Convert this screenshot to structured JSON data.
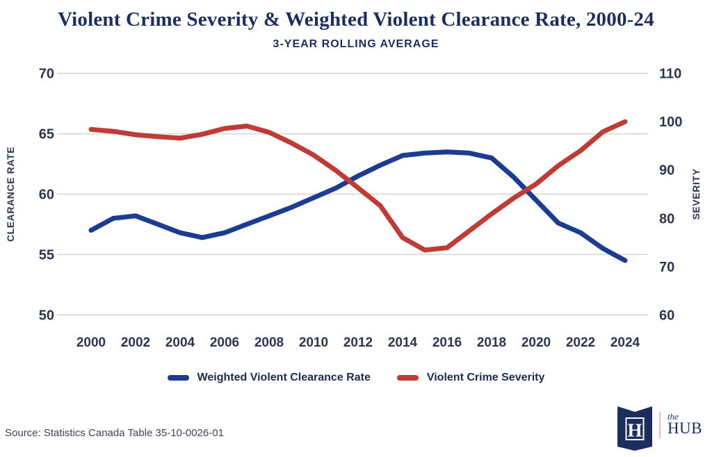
{
  "title": "Violent Crime Severity & Weighted Violent Clearance Rate, 2000-24",
  "subtitle": "3-YEAR ROLLING AVERAGE",
  "source": "Source: Statistics Canada Table 35-10-0026-01",
  "logo": {
    "h": "H",
    "the": "the",
    "hub": "HUB"
  },
  "colors": {
    "title_navy": "#1b2e5e",
    "tick_text": "#2d3550",
    "gridline": "#d9d9d9",
    "clearance_blue": "#1b3c8f",
    "severity_red": "#c03b36",
    "background": "#ffffff"
  },
  "chart_data": {
    "type": "line",
    "x": [
      2000,
      2001,
      2002,
      2003,
      2004,
      2005,
      2006,
      2007,
      2008,
      2009,
      2010,
      2011,
      2012,
      2013,
      2014,
      2015,
      2016,
      2017,
      2018,
      2019,
      2020,
      2021,
      2022,
      2023,
      2024
    ],
    "x_ticks": [
      2000,
      2002,
      2004,
      2006,
      2008,
      2010,
      2012,
      2014,
      2016,
      2018,
      2020,
      2022,
      2024
    ],
    "left_axis": {
      "label": "CLEARANCE RATE",
      "ticks": [
        70,
        65,
        60,
        55,
        50
      ],
      "range": [
        50,
        70
      ]
    },
    "right_axis": {
      "label": "SEVERITY",
      "ticks": [
        110,
        100,
        90,
        80,
        70,
        60
      ],
      "range": [
        60,
        110
      ]
    },
    "grid": "horizontal-left-ticks",
    "legend_position": "bottom-center",
    "series": [
      {
        "name": "Weighted Violent Clearance Rate",
        "axis": "left",
        "color": "#1b3c8f",
        "values": [
          57.0,
          58.0,
          58.2,
          57.5,
          56.8,
          56.4,
          56.8,
          57.5,
          58.2,
          58.9,
          59.7,
          60.5,
          61.5,
          62.4,
          63.2,
          63.4,
          63.5,
          63.4,
          63.0,
          61.4,
          59.5,
          57.6,
          56.8,
          55.5,
          54.5
        ]
      },
      {
        "name": "Violent Crime Severity",
        "axis": "right",
        "color": "#c03b36",
        "values": [
          98.4,
          98.0,
          97.3,
          96.9,
          96.6,
          97.4,
          98.6,
          99.1,
          97.8,
          95.6,
          93.1,
          89.9,
          86.3,
          82.6,
          76.0,
          73.4,
          73.9,
          77.4,
          80.9,
          84.2,
          87.1,
          90.9,
          94.0,
          97.9,
          100.0
        ]
      }
    ]
  }
}
